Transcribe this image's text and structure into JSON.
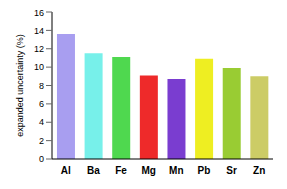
{
  "chart_data": {
    "type": "bar",
    "y_label": "expanded uncertainty (%)",
    "categories": [
      "Al",
      "Ba",
      "Fe",
      "Mg",
      "Mn",
      "Pb",
      "Sr",
      "Zn"
    ],
    "values": [
      13.6,
      11.5,
      11.1,
      9.1,
      8.7,
      10.9,
      9.9,
      9.0
    ],
    "colors": [
      "#a89ef0",
      "#77f0ea",
      "#4fd84f",
      "#ee2a2a",
      "#7a3dd0",
      "#eeee22",
      "#99cc33",
      "#cccc66"
    ],
    "ylim": [
      0,
      16
    ],
    "yticks": [
      0,
      2,
      4,
      6,
      8,
      10,
      12,
      14,
      16
    ],
    "grid": false
  }
}
